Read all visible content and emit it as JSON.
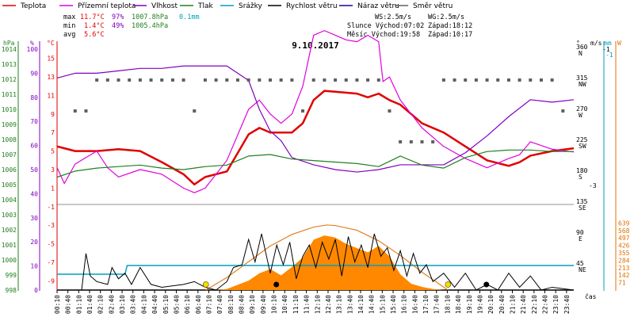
{
  "chart_data": {
    "type": "line",
    "title": "9.10.2017",
    "legend": [
      {
        "name": "Teplota",
        "color": "#e00000"
      },
      {
        "name": "Přízemní teplota",
        "color": "#e000e0"
      },
      {
        "name": "Vlhkost",
        "color": "#8000c0"
      },
      {
        "name": "Tlak",
        "color": "#208020"
      },
      {
        "name": "Srážky",
        "color": "#00a0c0"
      },
      {
        "name": "Rychlost větru",
        "color": "#000000"
      },
      {
        "name": "Náraz větru",
        "color": "#2000a0"
      },
      {
        "name": "Směr větru",
        "color": "#606060"
      }
    ],
    "stats": {
      "max": {
        "label": "max",
        "temp": "11.7°C",
        "hum": "97%",
        "press": "1007.8hPa",
        "rain": "0.1mm"
      },
      "min": {
        "label": "min",
        "temp": "1.4°C",
        "hum": "49%",
        "press": "1005.4hPa"
      },
      "avg": {
        "label": "avg",
        "temp": "5.6°C"
      }
    },
    "wind_info": {
      "ws": "WS:2.5m/s",
      "wg": "WG:2.5m/s"
    },
    "sun": {
      "rise": "Slunce Východ:07:02",
      "set": "Západ:18:12"
    },
    "moon": {
      "rise": "Měsíc Východ:19:58",
      "set": "Západ:10:17"
    },
    "axes": {
      "hpa_unit": "hPa",
      "pct_unit": "%",
      "c_unit": "°C",
      "deg_unit": "°",
      "ms_unit": "m/s",
      "mm_unit": "mm",
      "w_unit": "W",
      "time_label": "čas",
      "hpa_ticks": [
        "1014",
        "1013",
        "1012",
        "1011",
        "1010",
        "1009",
        "1008",
        "1007",
        "1006",
        "1005",
        "1004",
        "1003",
        "1002",
        "1001",
        "1000",
        "999",
        "998"
      ],
      "pct_ticks": [
        "100",
        "90",
        "80",
        "70",
        "60",
        "50",
        "40",
        "30",
        "20",
        "10",
        "0"
      ],
      "c_ticks": [
        "15",
        "13",
        "11",
        "9",
        "7",
        "5",
        "3",
        "1",
        "-1",
        "-3",
        "-5",
        "-7",
        "-9"
      ],
      "dir_ticks": [
        {
          "deg": "360",
          "dir": "N"
        },
        {
          "deg": "315",
          "dir": "NW"
        },
        {
          "deg": "270",
          "dir": "W"
        },
        {
          "deg": "225",
          "dir": "SW"
        },
        {
          "deg": "180",
          "dir": "S"
        },
        {
          "deg": "135",
          "dir": "SE"
        },
        {
          "deg": "90",
          "dir": "E"
        },
        {
          "deg": "45",
          "dir": "NE"
        }
      ],
      "ms_ticks": [
        "-1",
        "-3"
      ],
      "mm_ticks": [
        "-1"
      ],
      "w_ticks": [
        "639",
        "568",
        "497",
        "426",
        "355",
        "284",
        "213",
        "142",
        "71"
      ],
      "x_ticks": [
        "00:10",
        "00:40",
        "01:10",
        "01:40",
        "02:10",
        "02:40",
        "03:10",
        "03:40",
        "04:10",
        "04:40",
        "05:10",
        "05:40",
        "06:10",
        "06:40",
        "07:10",
        "07:40",
        "08:10",
        "08:40",
        "09:10",
        "09:40",
        "10:10",
        "10:40",
        "11:10",
        "11:40",
        "12:10",
        "12:40",
        "13:10",
        "13:40",
        "14:10",
        "14:40",
        "15:10",
        "15:40",
        "16:10",
        "16:40",
        "17:10",
        "17:40",
        "18:10",
        "18:40",
        "19:10",
        "19:40",
        "20:10",
        "20:40",
        "21:10",
        "21:40",
        "22:10",
        "22:40",
        "23:10",
        "23:40"
      ]
    },
    "x": {
      "start_hour": 0.1667,
      "end_hour": 24.0
    },
    "series": [
      {
        "name": "Teplota",
        "unit": "°C",
        "color": "#e00000",
        "t": [
          0.17,
          1,
          2,
          3,
          4,
          5,
          6,
          6.5,
          7,
          8,
          9,
          9.5,
          10,
          11,
          11.5,
          12,
          12.5,
          13,
          14,
          14.5,
          15,
          15.5,
          16,
          17,
          18,
          19,
          20,
          21,
          21.5,
          22,
          23,
          24
        ],
        "v": [
          5.5,
          5.0,
          5.0,
          5.2,
          5.0,
          3.8,
          2.5,
          1.4,
          2.2,
          2.8,
          6.8,
          7.5,
          7.0,
          7.0,
          8.0,
          10.5,
          11.5,
          11.4,
          11.2,
          10.8,
          11.2,
          10.5,
          10.0,
          8.0,
          7.0,
          5.5,
          4.0,
          3.4,
          3.8,
          4.5,
          5.0,
          5.3
        ]
      },
      {
        "name": "Přízemní teplota",
        "unit": "°C",
        "color": "#e000e0",
        "t": [
          0.17,
          0.5,
          1,
          2,
          2.5,
          3,
          4,
          5,
          6,
          6.5,
          7,
          8,
          9,
          9.5,
          10,
          10.5,
          11,
          11.5,
          12,
          12.5,
          13,
          13.5,
          14,
          14.5,
          15,
          15.2,
          15.5,
          16,
          17,
          17.5,
          18,
          19,
          20,
          21,
          21.5,
          22,
          23,
          24
        ],
        "v": [
          3.2,
          1.5,
          3.6,
          5.0,
          3.2,
          2.2,
          3.0,
          2.5,
          1.0,
          0.5,
          1.0,
          4.0,
          9.5,
          10.5,
          9.0,
          8.0,
          9.0,
          12.0,
          17.5,
          18.0,
          17.5,
          17.0,
          16.8,
          17.5,
          16.8,
          12.5,
          13.0,
          10.5,
          7.5,
          6.5,
          5.5,
          4.2,
          3.2,
          4.2,
          4.6,
          6.0,
          5.2,
          4.9
        ]
      },
      {
        "name": "Vlhkost",
        "unit": "%",
        "color": "#8000c0",
        "t": [
          0.17,
          1,
          2,
          3,
          4,
          5,
          6,
          7,
          8,
          9,
          9.5,
          10,
          10.5,
          11,
          12,
          13,
          14,
          15,
          16,
          17,
          18,
          19,
          20,
          21,
          22,
          23,
          24
        ],
        "v": [
          88,
          90,
          90,
          91,
          92,
          92,
          93,
          93,
          93,
          87,
          75,
          66,
          62,
          55,
          52,
          50,
          49,
          50,
          52,
          52,
          52,
          57,
          64,
          72,
          79,
          78,
          79
        ]
      },
      {
        "name": "Tlak",
        "unit": "hPa",
        "color": "#208020",
        "t": [
          0.17,
          1,
          2,
          3,
          4,
          5,
          6,
          7,
          8,
          9,
          10,
          11,
          12,
          13,
          14,
          15,
          16,
          17,
          18,
          19,
          20,
          21,
          22,
          23,
          24
        ],
        "v": [
          1005.5,
          1005.9,
          1006.1,
          1006.2,
          1006.3,
          1006.1,
          1006.0,
          1006.2,
          1006.3,
          1006.9,
          1007.0,
          1006.7,
          1006.6,
          1006.5,
          1006.4,
          1006.2,
          1006.9,
          1006.3,
          1006.1,
          1006.8,
          1007.2,
          1007.3,
          1007.3,
          1007.2,
          1007.2
        ]
      },
      {
        "name": "Srážky",
        "unit": "mm",
        "color": "#00a0c0",
        "t": [
          0.17,
          3.3,
          3.4,
          24
        ],
        "v": [
          0,
          0,
          0.1,
          0.1
        ]
      }
    ],
    "wind_speed": {
      "unit": "m/s",
      "t": [
        0.17,
        1.3,
        1.5,
        1.7,
        2.0,
        2.5,
        2.7,
        3.0,
        3.3,
        3.6,
        4.0,
        4.5,
        5,
        6,
        6.5,
        7,
        7.5,
        8,
        8.3,
        8.7,
        9,
        9.3,
        9.6,
        10,
        10.3,
        10.6,
        10.9,
        11.2,
        11.5,
        11.8,
        12.1,
        12.4,
        12.7,
        13,
        13.3,
        13.6,
        13.9,
        14.2,
        14.5,
        14.8,
        15.1,
        15.4,
        15.7,
        16,
        16.3,
        16.6,
        16.9,
        17.2,
        17.5,
        18,
        18.5,
        19,
        19.5,
        20,
        20.5,
        21,
        21.5,
        22,
        22.5,
        23,
        24
      ],
      "v": [
        0,
        0,
        1.3,
        0.5,
        0.3,
        0.2,
        0.8,
        0.4,
        0.6,
        0.2,
        0.8,
        0.2,
        0.1,
        0.2,
        0.3,
        0.1,
        0.0,
        0.3,
        0.8,
        0.9,
        1.8,
        1.0,
        2.0,
        0.6,
        1.6,
        0.9,
        1.7,
        0.4,
        1.2,
        1.6,
        0.8,
        1.7,
        1.1,
        1.8,
        0.5,
        1.9,
        1.0,
        1.6,
        0.8,
        2.0,
        1.2,
        1.5,
        0.7,
        1.4,
        0.5,
        1.3,
        0.6,
        0.9,
        0.3,
        0.6,
        0.1,
        0.6,
        0.0,
        0.2,
        0.0,
        0.6,
        0.1,
        0.5,
        0.0,
        0.1,
        0.0
      ]
    },
    "wind_direction": {
      "unit": "°",
      "t": [
        1,
        1.5,
        2,
        2.5,
        3,
        3.5,
        4,
        4.5,
        5,
        5.5,
        6,
        6.5,
        7,
        7.5,
        8,
        8.5,
        9,
        9.5,
        10,
        10.5,
        11,
        11.5,
        12,
        12.5,
        13,
        13.5,
        14,
        14.5,
        15,
        15.5,
        16,
        16.5,
        17,
        17.5,
        18,
        18.5,
        19,
        19.5,
        20,
        20.5,
        21,
        21.5,
        22,
        22.5,
        23,
        23.5
      ],
      "v": [
        270,
        270,
        315,
        315,
        315,
        315,
        315,
        315,
        315,
        315,
        315,
        270,
        315,
        315,
        315,
        315,
        315,
        315,
        315,
        315,
        315,
        270,
        315,
        315,
        315,
        315,
        315,
        315,
        315,
        270,
        225,
        225,
        225,
        225,
        315,
        315,
        315,
        315,
        315,
        315,
        315,
        315,
        315,
        315,
        315,
        270
      ]
    },
    "solar_radiation": {
      "unit": "W",
      "t": [
        7.5,
        8,
        8.5,
        9,
        9.5,
        10,
        10.5,
        11,
        11.5,
        12,
        12.5,
        13,
        13.5,
        14,
        14.5,
        15,
        15.5,
        16,
        16.5,
        17,
        17.5,
        18
      ],
      "v": [
        0,
        10,
        50,
        90,
        160,
        200,
        140,
        220,
        310,
        480,
        520,
        500,
        440,
        400,
        360,
        420,
        320,
        150,
        60,
        30,
        10,
        0
      ]
    },
    "clear_sky_radiation": {
      "unit": "W",
      "t": [
        7.03,
        8,
        9,
        10,
        11,
        12,
        12.6,
        13,
        14,
        15,
        16,
        17,
        18.2
      ],
      "v": [
        0,
        120,
        270,
        420,
        530,
        600,
        620,
        615,
        570,
        470,
        330,
        170,
        0
      ]
    },
    "sun_markers": [
      {
        "t": 7.03
      },
      {
        "t": 18.2
      }
    ],
    "moon_markers": [
      {
        "t": 10.28
      },
      {
        "t": 19.97
      }
    ]
  }
}
